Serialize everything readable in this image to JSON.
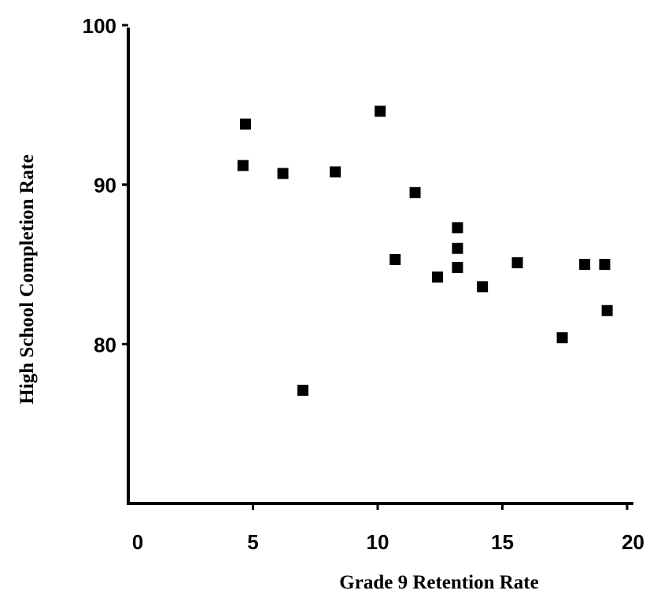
{
  "chart_data": {
    "type": "scatter",
    "xlabel": "Grade 9 Retention Rate",
    "ylabel": "High School Completion Rate",
    "xlim": [
      0,
      20
    ],
    "ylim": [
      70,
      100
    ],
    "xticks": [
      0,
      5,
      10,
      15,
      20
    ],
    "yticks": [
      80,
      90,
      100
    ],
    "marker": "square",
    "marker_color": "#000000",
    "grid": false,
    "legend": "none",
    "points": [
      {
        "x": 4.7,
        "y": 93.8
      },
      {
        "x": 4.6,
        "y": 91.2
      },
      {
        "x": 6.2,
        "y": 90.7
      },
      {
        "x": 7.0,
        "y": 77.1
      },
      {
        "x": 8.3,
        "y": 90.8
      },
      {
        "x": 10.1,
        "y": 94.6
      },
      {
        "x": 10.7,
        "y": 85.3
      },
      {
        "x": 11.5,
        "y": 89.5
      },
      {
        "x": 12.4,
        "y": 84.2
      },
      {
        "x": 13.2,
        "y": 87.3
      },
      {
        "x": 13.2,
        "y": 86.0
      },
      {
        "x": 13.2,
        "y": 84.8
      },
      {
        "x": 14.2,
        "y": 83.6
      },
      {
        "x": 15.6,
        "y": 85.1
      },
      {
        "x": 17.4,
        "y": 80.4
      },
      {
        "x": 18.3,
        "y": 85.0
      },
      {
        "x": 19.1,
        "y": 85.0
      },
      {
        "x": 19.2,
        "y": 82.1
      }
    ]
  }
}
